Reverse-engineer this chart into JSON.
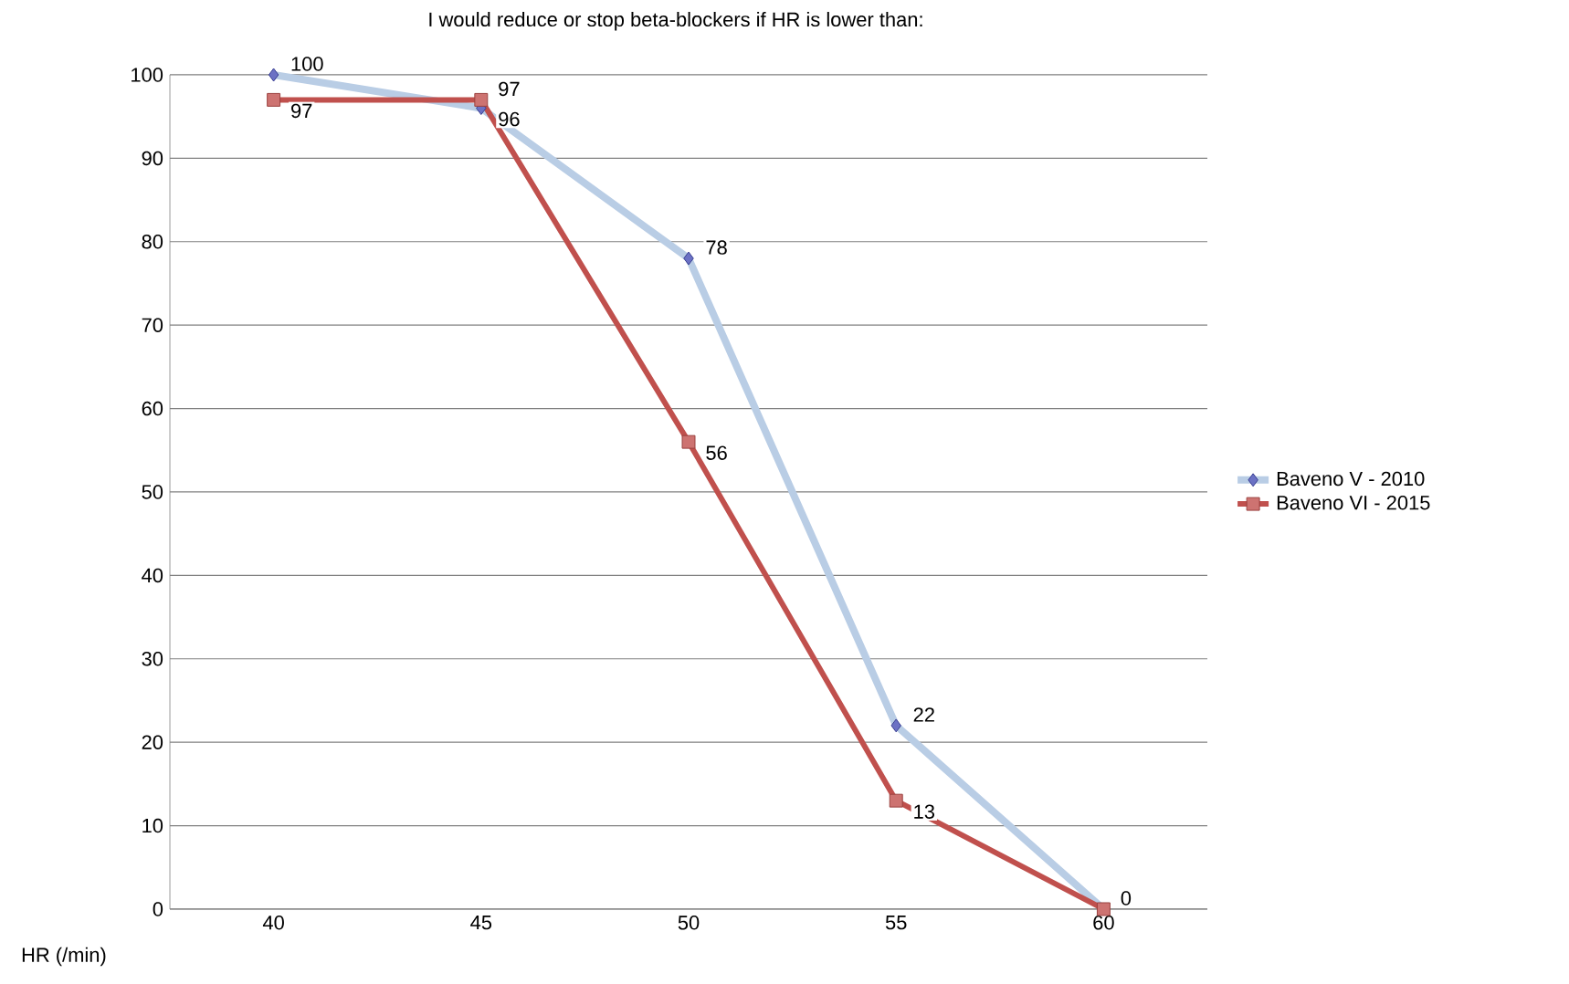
{
  "chart_data": {
    "type": "line",
    "title": "I would reduce or stop beta-blockers if HR is lower than:",
    "xlabel": "HR (/min)",
    "categories": [
      "40",
      "45",
      "50",
      "55",
      "60"
    ],
    "series": [
      {
        "name": "Baveno V - 2010",
        "color": "#b9cde5",
        "marker": "diamond",
        "values": [
          100,
          96,
          78,
          22,
          0
        ],
        "value_labels": [
          "100",
          "96",
          "78",
          "22",
          null
        ]
      },
      {
        "name": "Baveno VI - 2015",
        "color": "#c0504d",
        "marker": "square",
        "values": [
          97,
          97,
          56,
          13,
          0
        ],
        "value_labels": [
          "97",
          "97",
          "56",
          "13",
          "0"
        ]
      }
    ],
    "ylim": [
      0,
      100
    ],
    "yticks": [
      0,
      10,
      20,
      30,
      40,
      50,
      60,
      70,
      80,
      90,
      100
    ],
    "grid": "y",
    "legend": "right"
  }
}
